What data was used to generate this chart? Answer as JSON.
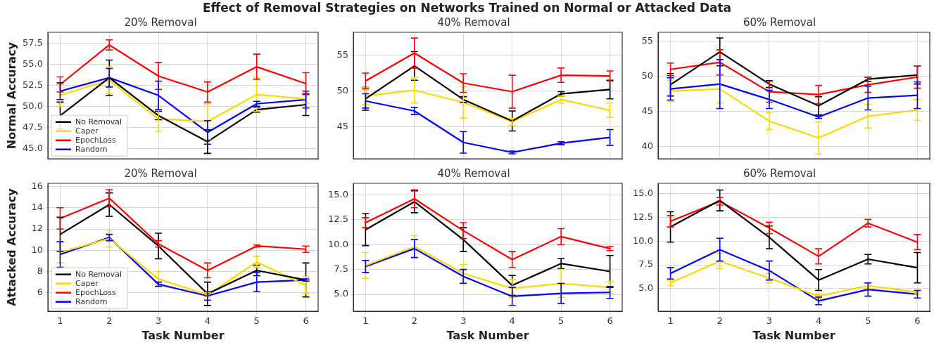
{
  "chart_data": [
    {
      "type": "line",
      "title": "20% Removal",
      "ylabel": "Normal Accuracy",
      "annotations": [
        "Effect of Removal Strategies on Networks Trained on Normal or Attacked Data"
      ],
      "x": [
        1,
        2,
        3,
        4,
        5,
        6
      ],
      "xlim": [
        0.75,
        6.25
      ],
      "xticks": [
        1,
        2,
        3,
        4,
        5,
        6
      ],
      "ylim": [
        43.75,
        58.8
      ],
      "yticks": [
        {
          "value": 45,
          "label": "45.0"
        },
        {
          "value": 47.5,
          "label": "47.5"
        },
        {
          "value": 50,
          "label": "50.0"
        },
        {
          "value": 52.5,
          "label": "52.5"
        },
        {
          "value": 55,
          "label": "55.0"
        },
        {
          "value": 57.5,
          "label": "57.5"
        }
      ],
      "grid": true,
      "legend": "bottom left",
      "tick_labels": "y",
      "line_style": "solid",
      "series": [
        {
          "name": "No Removal",
          "color": "#000000",
          "values": [
            48.9,
            53.4,
            48.9,
            45.8,
            49.6,
            50.2
          ],
          "errors": [
            1.6,
            2.1,
            0.5,
            1.4,
            0.3,
            1.3
          ]
        },
        {
          "name": "Caper",
          "color": "#ffd700",
          "values": [
            51.3,
            53.1,
            48.5,
            48.2,
            51.4,
            50.9
          ],
          "errors": [
            1.3,
            1.6,
            1.5,
            2.1,
            2.0,
            0.5
          ]
        },
        {
          "name": "EpochLoss",
          "color": "#ff0000",
          "values": [
            52.6,
            57.3,
            53.6,
            51.7,
            54.7,
            52.7
          ],
          "errors": [
            0.9,
            0.6,
            1.6,
            1.2,
            1.5,
            1.3
          ]
        },
        {
          "name": "Random",
          "color": "#0000ff",
          "values": [
            51.8,
            53.4,
            51.3,
            46.9,
            50.3,
            50.8
          ],
          "errors": [
            1.0,
            1.1,
            1.7,
            1.4,
            0.3,
            1.0
          ]
        }
      ]
    },
    {
      "type": "line",
      "title": "40% Removal",
      "x": [
        1,
        2,
        3,
        4,
        5,
        6
      ],
      "xlim": [
        0.75,
        6.25
      ],
      "xticks": [
        1,
        2,
        3,
        4,
        5,
        6
      ],
      "ylim": [
        40.5,
        58.2
      ],
      "yticks": [
        45,
        50,
        55
      ],
      "grid": true,
      "tick_labels": "y",
      "line_style": "solid",
      "series": [
        {
          "color": "#000000",
          "values": [
            48.9,
            53.5,
            48.8,
            45.8,
            49.6,
            50.2
          ],
          "errors": [
            1.6,
            2.0,
            0.4,
            1.4,
            0.3,
            1.3
          ]
        },
        {
          "color": "#ffd700",
          "values": [
            49.3,
            50.1,
            48.4,
            45.7,
            48.8,
            47.3
          ],
          "errors": [
            1.2,
            1.8,
            2.2,
            0.5,
            0.5,
            1.0
          ]
        },
        {
          "color": "#ff0000",
          "values": [
            51.4,
            55.3,
            51.1,
            49.9,
            52.2,
            52.1
          ],
          "errors": [
            1.1,
            2.1,
            1.3,
            2.3,
            1.0,
            0.7
          ]
        },
        {
          "color": "#0000ff",
          "values": [
            48.6,
            47.2,
            42.8,
            41.4,
            42.7,
            43.5
          ],
          "errors": [
            1.0,
            0.5,
            1.5,
            0.2,
            0.2,
            1.1
          ]
        }
      ]
    },
    {
      "type": "line",
      "title": "60% Removal",
      "x": [
        1,
        2,
        3,
        4,
        5,
        6
      ],
      "xlim": [
        0.75,
        6.25
      ],
      "xticks": [
        1,
        2,
        3,
        4,
        5,
        6
      ],
      "ylim": [
        38.2,
        56.3
      ],
      "yticks": [
        40,
        45,
        50,
        55
      ],
      "grid": true,
      "tick_labels": "y",
      "line_style": "solid",
      "series": [
        {
          "color": "#000000",
          "values": [
            48.8,
            53.5,
            48.9,
            45.8,
            49.6,
            50.2
          ],
          "errors": [
            1.6,
            2.0,
            0.5,
            1.3,
            0.3,
            1.3
          ]
        },
        {
          "color": "#ffd700",
          "values": [
            47.9,
            48.2,
            43.6,
            41.2,
            44.3,
            45.2
          ],
          "errors": [
            1.5,
            2.0,
            1.2,
            2.3,
            1.7,
            1.5
          ]
        },
        {
          "color": "#ff0000",
          "values": [
            51.0,
            52.0,
            47.8,
            47.4,
            48.8,
            49.9
          ],
          "errors": [
            0.9,
            1.8,
            1.5,
            1.3,
            1.1,
            1.6
          ]
        },
        {
          "color": "#0000ff",
          "values": [
            48.2,
            48.9,
            46.7,
            44.2,
            46.9,
            47.3
          ],
          "errors": [
            1.6,
            3.5,
            1.3,
            0.2,
            1.7,
            1.9
          ]
        }
      ]
    },
    {
      "type": "line",
      "title": "20% Removal",
      "xlabel": "Task Number",
      "ylabel": "Attacked Accuracy",
      "x": [
        1,
        2,
        3,
        4,
        5,
        6
      ],
      "xlim": [
        0.75,
        6.25
      ],
      "xticks": [
        1,
        2,
        3,
        4,
        5,
        6
      ],
      "ylim": [
        4.25,
        16.3
      ],
      "yticks": [
        6,
        8,
        10,
        12,
        14,
        16
      ],
      "grid": true,
      "legend": "bottom left",
      "line_style": "solid",
      "series": [
        {
          "name": "No Removal",
          "color": "#000000",
          "values": [
            11.5,
            14.3,
            10.4,
            5.9,
            8.1,
            7.2
          ],
          "errors": [
            1.6,
            1.1,
            1.2,
            1.1,
            0.5,
            1.6
          ]
        },
        {
          "name": "Caper",
          "color": "#ffd700",
          "values": [
            9.8,
            11.1,
            7.3,
            5.8,
            8.9,
            6.7
          ],
          "errors": [
            1.0,
            0.8,
            0.7,
            0.2,
            0.5,
            0.8
          ]
        },
        {
          "name": "EpochLoss",
          "color": "#ff0000",
          "values": [
            13.0,
            14.9,
            10.6,
            8.1,
            10.4,
            10.1
          ],
          "errors": [
            1.0,
            0.8,
            0.3,
            0.7,
            0.1,
            0.3
          ]
        },
        {
          "name": "Random",
          "color": "#0000ff",
          "values": [
            9.6,
            11.2,
            6.8,
            5.7,
            7.0,
            7.2
          ],
          "errors": [
            1.2,
            0.3,
            0.2,
            0.4,
            0.9,
            0.1
          ]
        }
      ]
    },
    {
      "type": "line",
      "title": "40% Removal",
      "xlabel": "Task Number",
      "x": [
        1,
        2,
        3,
        4,
        5,
        6
      ],
      "xlim": [
        0.75,
        6.25
      ],
      "xticks": [
        1,
        2,
        3,
        4,
        5,
        6
      ],
      "ylim": [
        3.3,
        16.15
      ],
      "yticks": [
        {
          "value": 5,
          "label": "5.0"
        },
        {
          "value": 7.5,
          "label": "7.5"
        },
        {
          "value": 10,
          "label": "10.0"
        },
        {
          "value": 12.5,
          "label": "12.5"
        },
        {
          "value": 15,
          "label": "15.0"
        }
      ],
      "grid": true,
      "line_style": "solid",
      "series": [
        {
          "color": "#000000",
          "values": [
            11.5,
            14.3,
            10.5,
            5.9,
            8.1,
            7.3
          ],
          "errors": [
            1.6,
            1.1,
            1.2,
            1.0,
            0.5,
            1.6
          ]
        },
        {
          "color": "#ffd700",
          "values": [
            7.9,
            9.8,
            7.1,
            5.6,
            6.1,
            5.7
          ],
          "errors": [
            1.3,
            1.1,
            0.9,
            0.9,
            1.4,
            0.6
          ]
        },
        {
          "color": "#ff0000",
          "values": [
            12.2,
            14.6,
            11.4,
            8.5,
            10.8,
            9.6
          ],
          "errors": [
            0.5,
            0.9,
            0.8,
            0.8,
            0.8,
            0.2
          ]
        },
        {
          "color": "#0000ff",
          "values": [
            7.8,
            9.6,
            6.8,
            4.8,
            5.1,
            5.2
          ],
          "errors": [
            0.6,
            0.9,
            0.7,
            0.9,
            1.0,
            0.6
          ]
        }
      ]
    },
    {
      "type": "line",
      "title": "60% Removal",
      "xlabel": "Task Number",
      "x": [
        1,
        2,
        3,
        4,
        5,
        6
      ],
      "xlim": [
        0.75,
        6.25
      ],
      "xticks": [
        1,
        2,
        3,
        4,
        5,
        6
      ],
      "ylim": [
        2.6,
        16.1
      ],
      "yticks": [
        {
          "value": 5,
          "label": "5.0"
        },
        {
          "value": 7.5,
          "label": "7.5"
        },
        {
          "value": 10,
          "label": "10.0"
        },
        {
          "value": 12.5,
          "label": "12.5"
        },
        {
          "value": 15,
          "label": "15.0"
        }
      ],
      "grid": true,
      "line_style": "solid",
      "series": [
        {
          "color": "#000000",
          "values": [
            11.5,
            14.3,
            10.4,
            5.9,
            8.1,
            7.2
          ],
          "errors": [
            1.6,
            1.1,
            1.2,
            1.1,
            0.5,
            1.6
          ]
        },
        {
          "color": "#ffd700",
          "values": [
            5.6,
            7.9,
            6.1,
            4.2,
            5.3,
            4.6
          ],
          "errors": [
            0.3,
            0.8,
            0.5,
            0.2,
            0.3,
            0.2
          ]
        },
        {
          "color": "#ff0000",
          "values": [
            12.1,
            14.2,
            11.4,
            8.4,
            11.9,
            9.9
          ],
          "errors": [
            0.6,
            0.4,
            0.6,
            0.8,
            0.4,
            0.8
          ]
        },
        {
          "color": "#0000ff",
          "values": [
            6.6,
            9.1,
            6.9,
            3.7,
            4.9,
            4.4
          ],
          "errors": [
            0.6,
            1.2,
            1.0,
            0.4,
            0.7,
            0.4
          ]
        }
      ]
    }
  ]
}
